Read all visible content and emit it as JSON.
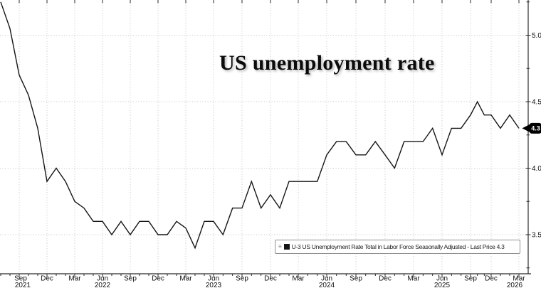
{
  "title": "US unemployment rate",
  "legend": {
    "label": "U-3 US Unemployment Rate Total in Labor Force Seasonally Adjusted - Last Price 4.3",
    "menu_icon": "menu-icon"
  },
  "colors": {
    "series": "#151515",
    "grid": "#c3c3c3",
    "axis": "#2b2b2b",
    "label_text": "#111111",
    "badge_bg": "#000000",
    "badge_text": "#ffffff"
  },
  "chart_data": {
    "type": "line",
    "title": "US unemployment rate",
    "xlabel": "",
    "ylabel": "",
    "grid": "dotted",
    "legend_position": "bottom-right",
    "last_price": "4.3",
    "ylim": [
      3.2,
      5.27
    ],
    "y_ticks": [
      3.5,
      4.0,
      4.5,
      5.0
    ],
    "y_minor_ticks": [
      3.25,
      3.75,
      4.25,
      4.75,
      5.25
    ],
    "x_ticks": [
      {
        "month": "Sep",
        "year": "2021"
      },
      {
        "month": "Dec"
      },
      {
        "month": "Mar"
      },
      {
        "month": "Jun",
        "year": "2022"
      },
      {
        "month": "Sep"
      },
      {
        "month": "Dec"
      },
      {
        "month": "Mar"
      },
      {
        "month": "Jun",
        "year": "2023"
      },
      {
        "month": "Sep"
      },
      {
        "month": "Dec"
      },
      {
        "month": "Mar"
      },
      {
        "month": "Jun",
        "year": "2024"
      },
      {
        "month": "Sep"
      },
      {
        "month": "Dec"
      },
      {
        "month": "Mar"
      },
      {
        "month": "Jun",
        "year": "2025"
      },
      {
        "month": "Sep"
      },
      {
        "month": "Dec"
      },
      {
        "month": "Mar",
        "year": "2026"
      }
    ],
    "series": [
      {
        "name": "U-3 US Unemployment Rate Total in Labor Force Seasonally Adjusted",
        "start": "2021-07",
        "freq": "monthly",
        "values": [
          5.25,
          5.05,
          4.7,
          4.55,
          4.3,
          3.9,
          4.0,
          3.9,
          3.75,
          3.7,
          3.6,
          3.6,
          3.5,
          3.6,
          3.5,
          3.6,
          3.6,
          3.5,
          3.5,
          3.6,
          3.55,
          3.4,
          3.6,
          3.6,
          3.5,
          3.7,
          3.7,
          3.9,
          3.7,
          3.8,
          3.7,
          3.9,
          3.9,
          3.9,
          3.9,
          4.1,
          4.2,
          4.2,
          4.1,
          4.1,
          4.2,
          4.1,
          4.0,
          4.2,
          4.2,
          4.2,
          4.3,
          4.1,
          4.3,
          4.3,
          4.4,
          4.5,
          4.4,
          4.4,
          4.3,
          4.4,
          4.3
        ]
      }
    ]
  }
}
